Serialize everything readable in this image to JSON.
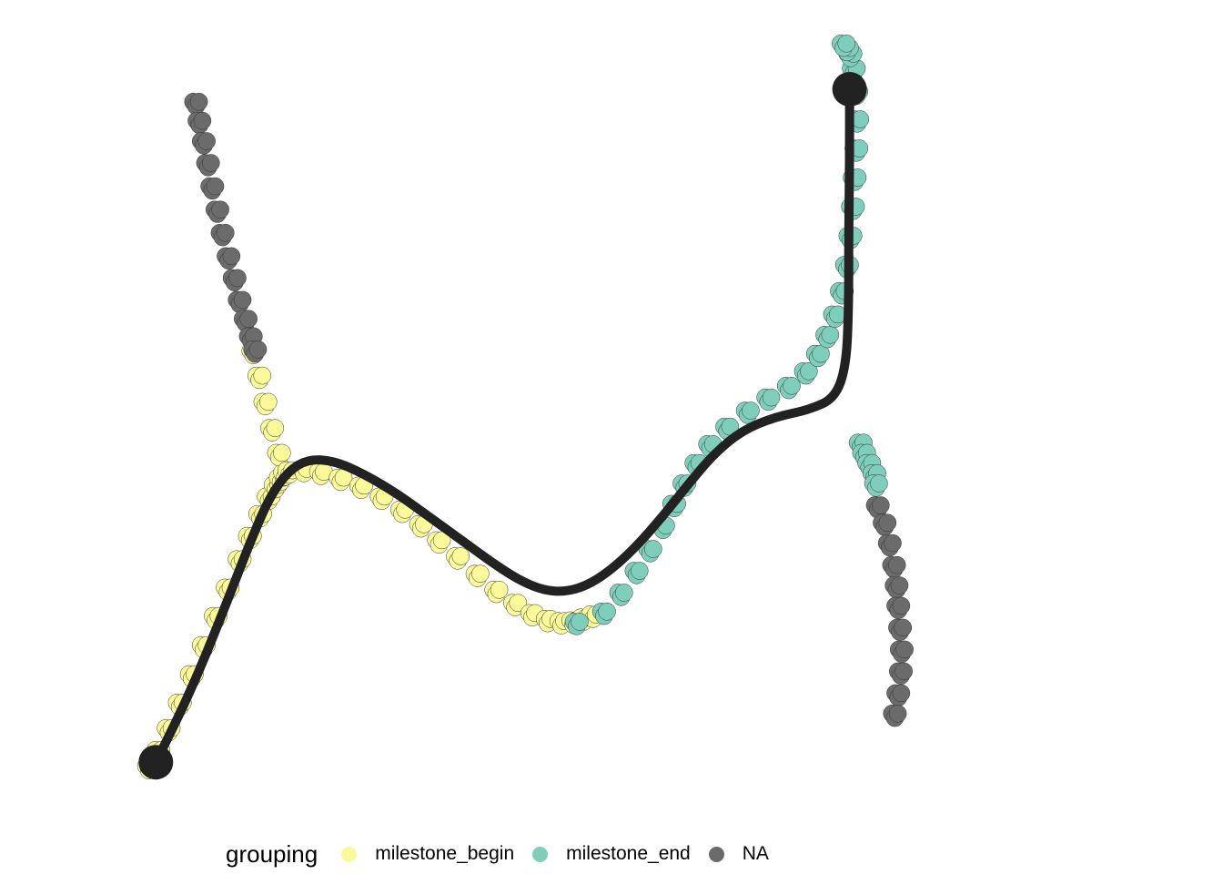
{
  "chart_data": {
    "type": "scatter",
    "title": "",
    "xlabel": "",
    "ylabel": "",
    "xlim": [
      0,
      100
    ],
    "ylim": [
      0,
      100
    ],
    "grid": false,
    "axes": false,
    "legend": {
      "title": "grouping",
      "position": "bottom",
      "entries": [
        {
          "label": "milestone_begin",
          "color": "#fafa9b"
        },
        {
          "label": "milestone_end",
          "color": "#7fcdbb"
        },
        {
          "label": "NA",
          "color": "#6b6b6b"
        }
      ]
    },
    "series": [
      {
        "name": "milestone_begin",
        "color": "#fafa9b",
        "x": [
          0.4,
          1.5,
          2.7,
          4.0,
          5.4,
          6.8,
          8.2,
          9.6,
          11.0,
          12.2,
          13.4,
          14.4,
          15.2,
          15.8,
          16.3,
          15.6,
          14.8,
          14.0,
          13.3,
          12.6,
          16.8,
          18.5,
          20.5,
          22.8,
          25.2,
          27.6,
          30.0,
          32.2,
          34.3,
          36.5,
          38.8,
          41.0,
          43.2,
          45.2,
          47.0,
          48.6,
          50.0,
          51.2,
          52.3
        ],
        "y": [
          0.8,
          3.0,
          6.0,
          9.5,
          13.4,
          17.4,
          21.4,
          25.3,
          29.2,
          32.4,
          35.4,
          37.8,
          39.4,
          40.4,
          41.1,
          43.8,
          47.2,
          50.8,
          54.4,
          57.8,
          41.4,
          41.6,
          41.2,
          40.4,
          39.3,
          37.8,
          36.0,
          34.0,
          31.8,
          29.6,
          27.2,
          25.0,
          23.2,
          21.8,
          21.0,
          20.7,
          20.8,
          21.2,
          21.6
        ]
      },
      {
        "name": "milestone_end",
        "color": "#7fcdbb",
        "x": [
          50.4,
          53.6,
          55.6,
          57.4,
          59.0,
          60.5,
          61.8,
          63.0,
          64.4,
          66.0,
          68.0,
          70.4,
          72.8,
          75.2,
          77.2,
          78.6,
          79.7,
          80.6,
          81.4,
          82.0,
          82.4,
          82.7,
          82.9,
          83.1,
          83.2,
          83.1,
          82.8,
          82.4,
          82.0,
          81.6,
          83.6,
          84.0,
          84.6,
          85.2,
          85.4
        ],
        "y": [
          20.6,
          22.0,
          24.6,
          27.6,
          30.6,
          33.8,
          36.8,
          39.6,
          42.4,
          45.0,
          47.4,
          49.6,
          51.4,
          53.0,
          55.0,
          57.4,
          60.0,
          62.8,
          66.0,
          69.6,
          73.6,
          77.6,
          81.6,
          85.6,
          89.6,
          93.4,
          96.6,
          98.6,
          99.4,
          100.0,
          45.2,
          43.8,
          42.4,
          41.0,
          39.6
        ]
      },
      {
        "name": "NA",
        "color": "#6b6b6b",
        "x": [
          5.9,
          6.3,
          6.8,
          7.3,
          7.8,
          8.4,
          9.0,
          9.7,
          10.4,
          11.0,
          11.7,
          12.3,
          12.8,
          85.6,
          86.4,
          87.0,
          87.5,
          87.8,
          88.0,
          88.2,
          88.4,
          88.3,
          88.0,
          87.6
        ],
        "y": [
          92.0,
          89.4,
          86.6,
          83.6,
          80.4,
          77.2,
          74.0,
          70.8,
          67.8,
          64.8,
          62.2,
          59.8,
          58.0,
          36.6,
          34.2,
          31.4,
          28.4,
          25.6,
          22.8,
          19.8,
          16.8,
          13.8,
          10.8,
          8.0
        ]
      },
      {
        "name": "",
        "color": "#222222",
        "role": "trajectory",
        "x": [
          1.2,
          3.5,
          6.0,
          8.3,
          10.5,
          12.5,
          14.5,
          16.7,
          19.0,
          22.0,
          25.5,
          29.5,
          33.5,
          37.5,
          41.0,
          44.0,
          46.6,
          49.0,
          51.5,
          54.2,
          57.2,
          60.5,
          63.6,
          66.5,
          69.8,
          73.6,
          77.6,
          80.6,
          81.9,
          82.2,
          82.2,
          82.3,
          82.3
        ],
        "y": [
          1.6,
          7.0,
          13.4,
          20.0,
          26.6,
          32.6,
          38.0,
          41.6,
          43.2,
          43.0,
          41.2,
          38.4,
          35.0,
          31.6,
          28.6,
          26.4,
          25.2,
          25.0,
          25.8,
          27.8,
          31.0,
          35.4,
          40.0,
          44.0,
          47.2,
          49.0,
          50.0,
          51.6,
          56.0,
          64.0,
          74.0,
          84.0,
          94.0
        ]
      },
      {
        "name": "",
        "color": "#222222",
        "role": "milestone",
        "x": [
          1.2,
          82.3
        ],
        "y": [
          1.6,
          94.0
        ]
      }
    ]
  }
}
